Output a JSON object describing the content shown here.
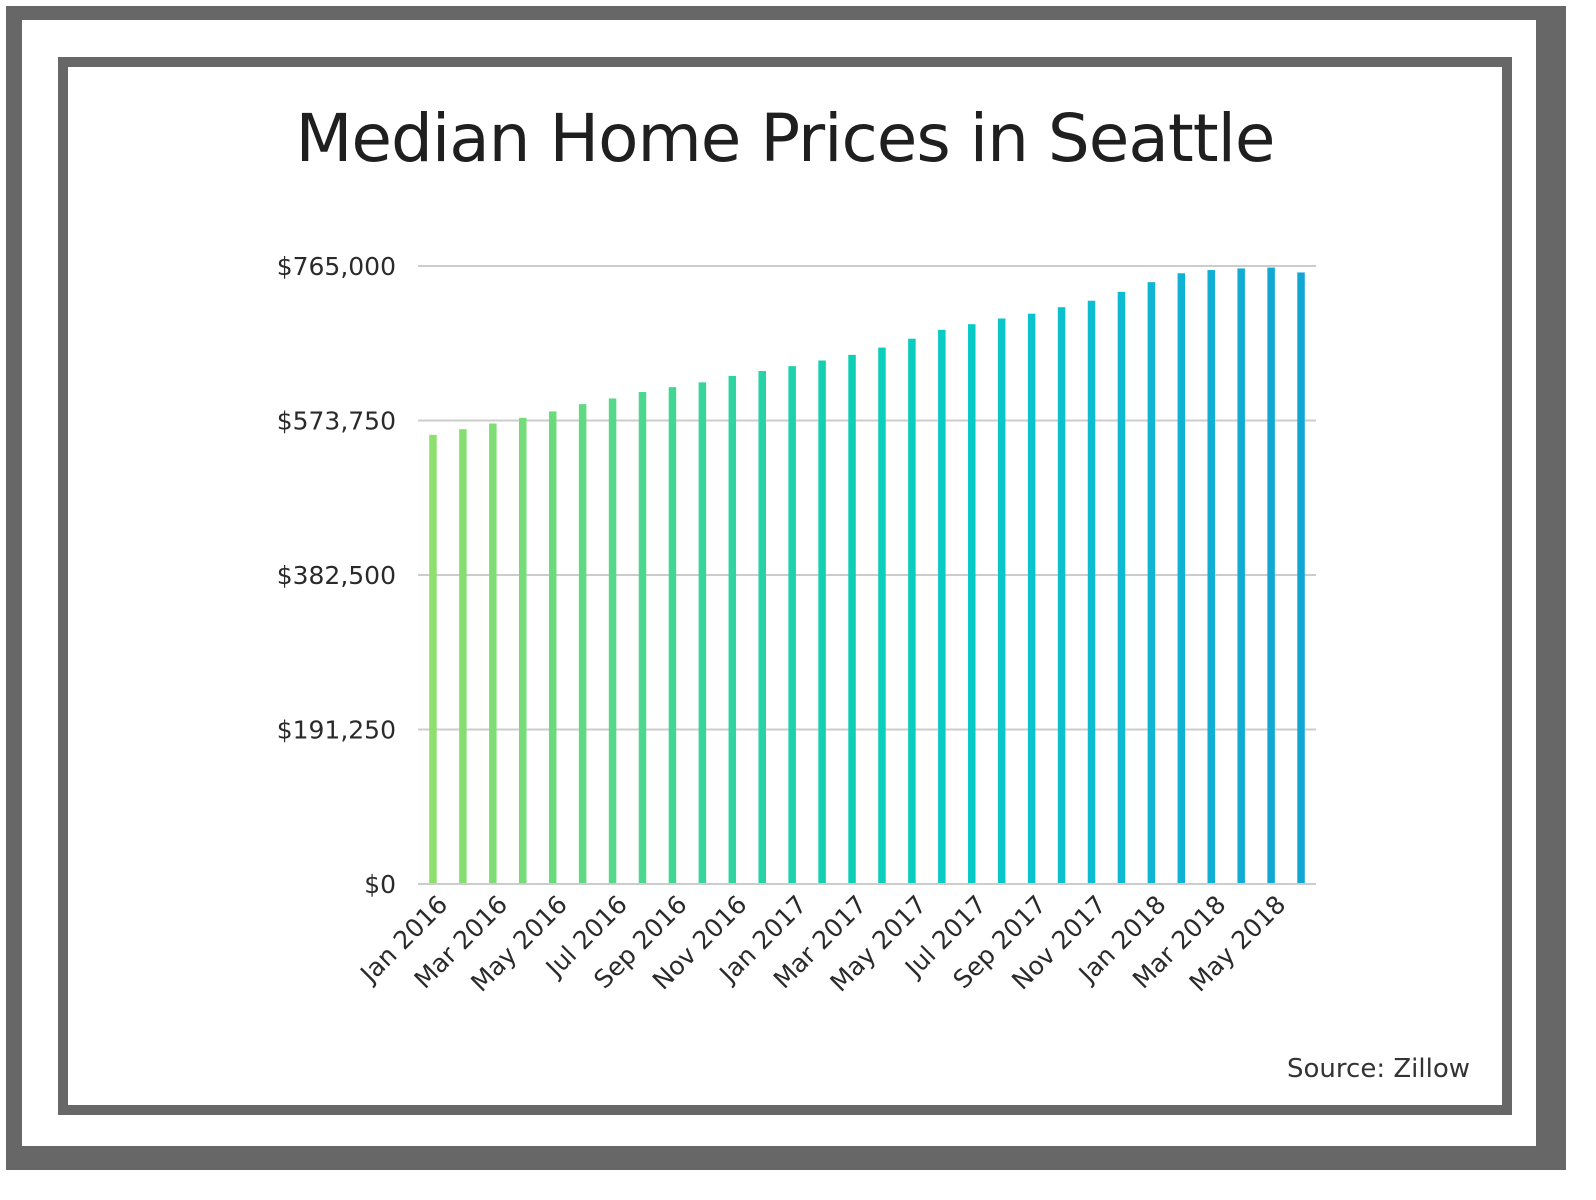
{
  "chart_data": {
    "type": "bar",
    "title": "Median Home Prices in Seattle",
    "source": "Source: Zillow",
    "xlabel": "",
    "ylabel": "",
    "ylim": [
      0,
      765000
    ],
    "y_ticks": [
      {
        "value": 0,
        "label": "$0"
      },
      {
        "value": 191250,
        "label": "$191,250"
      },
      {
        "value": 382500,
        "label": "$382,500"
      },
      {
        "value": 573750,
        "label": "$573,750"
      },
      {
        "value": 765000,
        "label": "$765,000"
      }
    ],
    "categories": [
      "Jan 2016",
      "Feb 2016",
      "Mar 2016",
      "Apr 2016",
      "May 2016",
      "Jun 2016",
      "Jul 2016",
      "Aug 2016",
      "Sep 2016",
      "Oct 2016",
      "Nov 2016",
      "Dec 2016",
      "Jan 2017",
      "Feb 2017",
      "Mar 2017",
      "Apr 2017",
      "May 2017",
      "Jun 2017",
      "Jul 2017",
      "Aug 2017",
      "Sep 2017",
      "Oct 2017",
      "Nov 2017",
      "Dec 2017",
      "Jan 2018",
      "Feb 2018",
      "Mar 2018",
      "Apr 2018",
      "May 2018",
      "Jun 2018"
    ],
    "x_tick_labels": [
      "Jan 2016",
      "Mar 2016",
      "May 2016",
      "Jul 2016",
      "Sep 2016",
      "Nov 2016",
      "Jan 2017",
      "Mar 2017",
      "May 2017",
      "Jul 2017",
      "Sep 2017",
      "Nov 2017",
      "Jan 2018",
      "Mar 2018",
      "May 2018"
    ],
    "values": [
      556000,
      563000,
      570000,
      577000,
      585000,
      594000,
      601000,
      609000,
      615000,
      621000,
      629000,
      635000,
      641000,
      648000,
      655000,
      664000,
      675000,
      686000,
      693000,
      700000,
      706000,
      714000,
      722000,
      733000,
      745000,
      756000,
      760000,
      762000,
      763000,
      757000
    ],
    "bar_colors": [
      "#8fdf6e",
      "#86de70",
      "#7edd74",
      "#74dc78",
      "#6adb7d",
      "#5fd982",
      "#55d888",
      "#4bd78e",
      "#42d694",
      "#38d59a",
      "#2fd4a0",
      "#25d3a6",
      "#1cd2ac",
      "#14d0b1",
      "#0ecfb6",
      "#0bcebb",
      "#0acdbf",
      "#09cbc3",
      "#09c9c7",
      "#0ac6ca",
      "#0bc3cd",
      "#0cc0cf",
      "#0dbcd1",
      "#0eb9d2",
      "#0fb6d3",
      "#10b2d4",
      "#10afd4",
      "#11acd4",
      "#11a9d3",
      "#12a7d3"
    ],
    "grid": true,
    "gridline_color": "#cccccc",
    "legend": "none"
  }
}
